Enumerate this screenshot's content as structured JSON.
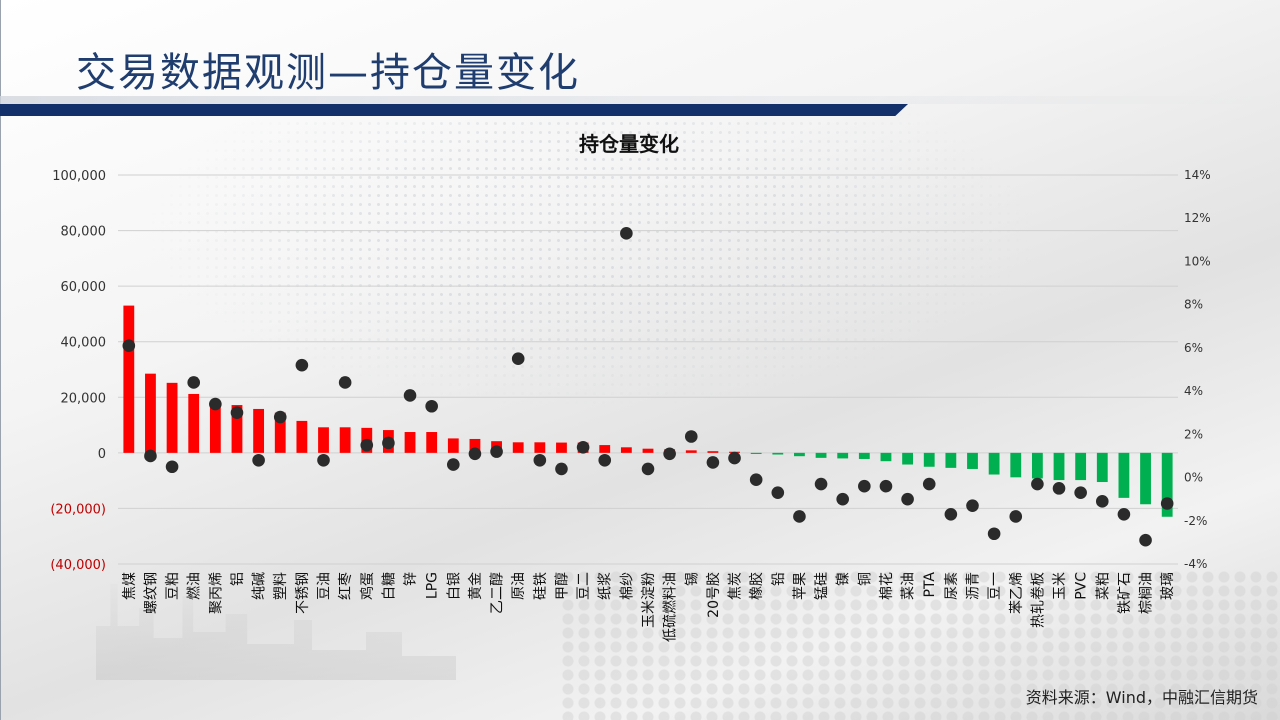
{
  "page": {
    "title": "交易数据观测—持仓量变化",
    "source": "资料来源：Wind，中融汇信期货"
  },
  "colors": {
    "positive_bar": "#ff0000",
    "negative_bar": "#00b050",
    "point": "#2b2b2b",
    "title": "#1f3d6e",
    "title_bar": "#13306a",
    "negative_tick": "#c00000"
  },
  "chart_data": {
    "type": "bar",
    "title": "持仓量变化",
    "categories": [
      "焦煤",
      "螺纹钢",
      "豆粕",
      "燃油",
      "聚丙烯",
      "铝",
      "纯碱",
      "塑料",
      "不锈钢",
      "豆油",
      "红枣",
      "鸡蛋",
      "白糖",
      "锌",
      "LPG",
      "白银",
      "黄金",
      "乙二醇",
      "原油",
      "硅铁",
      "甲醇",
      "豆二",
      "纸浆",
      "棉纱",
      "玉米淀粉",
      "低硫燃料油",
      "锡",
      "20号胶",
      "焦炭",
      "橡胶",
      "铅",
      "苹果",
      "锰硅",
      "镍",
      "铜",
      "棉花",
      "菜油",
      "PTA",
      "尿素",
      "沥青",
      "豆一",
      "苯乙烯",
      "热轧卷板",
      "玉米",
      "PVC",
      "菜粕",
      "铁矿石",
      "棕榈油",
      "玻璃"
    ],
    "series": [
      {
        "axis": "left",
        "type": "bar",
        "values": [
          53000,
          28500,
          25200,
          21200,
          18500,
          17200,
          15800,
          14500,
          11500,
          9200,
          9200,
          9000,
          8200,
          7500,
          7500,
          5200,
          5000,
          4200,
          3800,
          3800,
          3700,
          3700,
          2800,
          2000,
          1500,
          1300,
          900,
          600,
          400,
          -400,
          -600,
          -1200,
          -1800,
          -2000,
          -2200,
          -3000,
          -4200,
          -5000,
          -5400,
          -5800,
          -7800,
          -8800,
          -9200,
          -9800,
          -9800,
          -10500,
          -16200,
          -18500,
          -23000
        ]
      },
      {
        "axis": "right",
        "type": "scatter",
        "values": [
          6.1,
          1.0,
          0.5,
          4.4,
          3.4,
          3.0,
          0.8,
          2.8,
          5.2,
          0.8,
          4.4,
          1.5,
          1.6,
          3.8,
          3.3,
          0.6,
          1.1,
          1.2,
          5.5,
          0.8,
          0.4,
          1.4,
          0.8,
          11.3,
          0.4,
          1.1,
          1.9,
          0.7,
          0.9,
          -0.1,
          -0.7,
          -1.8,
          -0.3,
          -1.0,
          -0.4,
          -0.4,
          -1.0,
          -0.3,
          -1.7,
          -1.3,
          -2.6,
          -1.8,
          -0.3,
          -0.5,
          -0.7,
          -1.1,
          -1.7,
          -2.9,
          -1.2
        ]
      }
    ],
    "left_axis": {
      "ylim": [
        -40000,
        100000
      ],
      "ticks": [
        100000,
        80000,
        60000,
        40000,
        20000,
        0,
        -20000,
        -40000
      ],
      "tick_labels": [
        "100,000",
        "80,000",
        "60,000",
        "40,000",
        "20,000",
        "0",
        "(20,000)",
        "(40,000)"
      ]
    },
    "right_axis": {
      "ylim": [
        -4,
        14
      ],
      "ticks": [
        14,
        12,
        10,
        8,
        6,
        4,
        2,
        0,
        -2,
        -4
      ],
      "tick_labels": [
        "14%",
        "12%",
        "10%",
        "8%",
        "6%",
        "4%",
        "2%",
        "0%",
        "-2%",
        "-4%"
      ]
    },
    "grid": true,
    "legend": "none"
  }
}
